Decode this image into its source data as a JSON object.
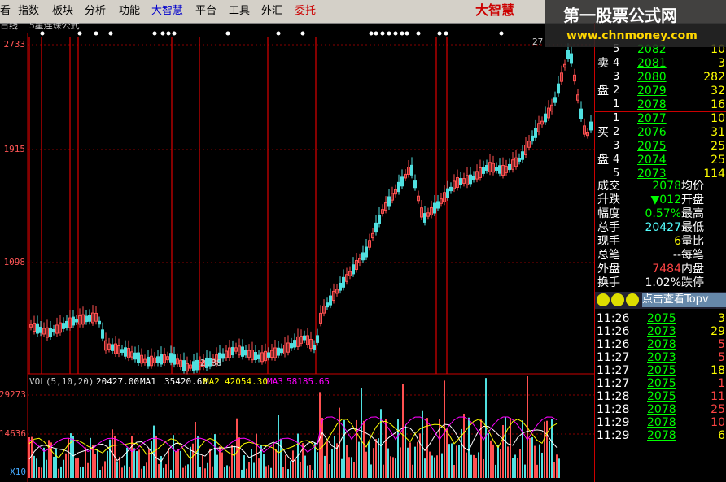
{
  "menu": [
    "看",
    "指数",
    "板块",
    "分析",
    "功能",
    "大智慧",
    "平台",
    "工具",
    "外汇",
    "委托"
  ],
  "logo": "大智慧",
  "watermark": {
    "title": "第一股票公式网",
    "url": "www.chnmoney.com"
  },
  "chart": {
    "period": "日线",
    "formula": "5星连珠公式",
    "price_axis": [
      "2733",
      "1915",
      "1098"
    ],
    "low_label": "2.88",
    "top_label": "27",
    "volume_line": [
      "VOL(5,10,20)",
      "20427.00",
      "MA1",
      "35420.60",
      "MA2",
      "42054.30",
      "MA3",
      "58185.65"
    ],
    "volume_axis": [
      "29273",
      "14636",
      "X10"
    ]
  },
  "order_book": {
    "sell_label": [
      "卖",
      "盘"
    ],
    "buy_label": [
      "买",
      "盘"
    ],
    "sell": [
      [
        "5",
        "2082",
        "10"
      ],
      [
        "4",
        "2081",
        "3"
      ],
      [
        "3",
        "2080",
        "282"
      ],
      [
        "2",
        "2079",
        "32"
      ],
      [
        "1",
        "2078",
        "16"
      ]
    ],
    "buy": [
      [
        "1",
        "2077",
        "10"
      ],
      [
        "2",
        "2076",
        "31"
      ],
      [
        "3",
        "2075",
        "25"
      ],
      [
        "4",
        "2074",
        "25"
      ],
      [
        "5",
        "2073",
        "114"
      ]
    ]
  },
  "stats": [
    [
      "成交",
      "2078",
      "均价"
    ],
    [
      "升跌",
      "▼012",
      "开盘"
    ],
    [
      "幅度",
      "0.57%",
      "最高"
    ],
    [
      "总手",
      "20427",
      "最低"
    ],
    [
      "现手",
      "6",
      "量比"
    ],
    [
      "总笔",
      "--",
      "每笔"
    ],
    [
      "外盘",
      "7484",
      "内盘"
    ],
    [
      "换手",
      "1.02%",
      "跌停"
    ]
  ],
  "button": "点击查看Topv",
  "ticks": [
    [
      "11:26",
      "2075",
      "3"
    ],
    [
      "11:26",
      "2073",
      "29"
    ],
    [
      "11:26",
      "2078",
      "5"
    ],
    [
      "11:27",
      "2073",
      "5"
    ],
    [
      "11:27",
      "2075",
      "18"
    ],
    [
      "11:27",
      "2075",
      "1"
    ],
    [
      "11:28",
      "2075",
      "11"
    ],
    [
      "11:28",
      "2078",
      "25"
    ],
    [
      "11:29",
      "2078",
      "10"
    ],
    [
      "11:29",
      "2078",
      "6"
    ]
  ]
}
